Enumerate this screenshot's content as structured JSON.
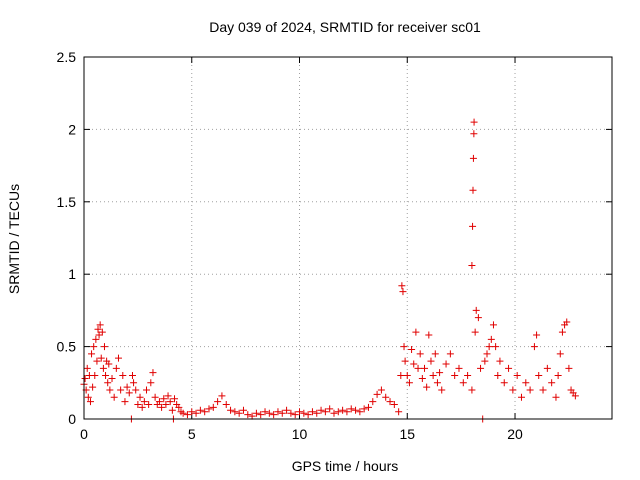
{
  "chart_data": {
    "type": "scatter",
    "title": "Day 039 of 2024, SRMTID for receiver sc01",
    "xlabel": "GPS time / hours",
    "ylabel": "SRMTID / TECUs",
    "xlim": [
      0,
      24.5
    ],
    "ylim": [
      0,
      2.5
    ],
    "xticks": [
      0,
      5,
      10,
      15,
      20
    ],
    "xtick_labels": [
      "0",
      "5",
      "10",
      "15",
      "20"
    ],
    "yticks": [
      0,
      0.5,
      1,
      1.5,
      2,
      2.5
    ],
    "ytick_labels": [
      "0",
      "0.5",
      "1",
      "1.5",
      "2",
      "2.5"
    ],
    "grid": true,
    "marker": "+",
    "color": "#e00000",
    "series": [
      {
        "name": "SRMTID",
        "points": [
          [
            0.0,
            0.24
          ],
          [
            0.05,
            0.28
          ],
          [
            0.1,
            0.2
          ],
          [
            0.15,
            0.35
          ],
          [
            0.2,
            0.15
          ],
          [
            0.25,
            0.3
          ],
          [
            0.3,
            0.12
          ],
          [
            0.35,
            0.45
          ],
          [
            0.4,
            0.22
          ],
          [
            0.45,
            0.5
          ],
          [
            0.5,
            0.3
          ],
          [
            0.55,
            0.55
          ],
          [
            0.6,
            0.4
          ],
          [
            0.65,
            0.62
          ],
          [
            0.7,
            0.58
          ],
          [
            0.75,
            0.65
          ],
          [
            0.8,
            0.42
          ],
          [
            0.85,
            0.6
          ],
          [
            0.9,
            0.35
          ],
          [
            0.95,
            0.5
          ],
          [
            1.0,
            0.3
          ],
          [
            1.05,
            0.4
          ],
          [
            1.1,
            0.25
          ],
          [
            1.15,
            0.38
          ],
          [
            1.2,
            0.2
          ],
          [
            1.3,
            0.28
          ],
          [
            1.4,
            0.15
          ],
          [
            1.5,
            0.35
          ],
          [
            1.6,
            0.42
          ],
          [
            1.7,
            0.2
          ],
          [
            1.8,
            0.3
          ],
          [
            1.9,
            0.12
          ],
          [
            2.0,
            0.22
          ],
          [
            2.1,
            0.18
          ],
          [
            2.2,
            0.0
          ],
          [
            2.25,
            0.3
          ],
          [
            2.3,
            0.25
          ],
          [
            2.4,
            0.2
          ],
          [
            2.5,
            0.1
          ],
          [
            2.6,
            0.15
          ],
          [
            2.7,
            0.08
          ],
          [
            2.8,
            0.12
          ],
          [
            2.9,
            0.2
          ],
          [
            3.0,
            0.1
          ],
          [
            3.1,
            0.25
          ],
          [
            3.2,
            0.32
          ],
          [
            3.3,
            0.15
          ],
          [
            3.4,
            0.1
          ],
          [
            3.5,
            0.12
          ],
          [
            3.6,
            0.08
          ],
          [
            3.7,
            0.14
          ],
          [
            3.8,
            0.1
          ],
          [
            3.9,
            0.16
          ],
          [
            4.0,
            0.12
          ],
          [
            4.1,
            0.06
          ],
          [
            4.15,
            0.0
          ],
          [
            4.2,
            0.14
          ],
          [
            4.3,
            0.1
          ],
          [
            4.4,
            0.08
          ],
          [
            4.5,
            0.05
          ],
          [
            4.6,
            0.04
          ],
          [
            4.8,
            0.03
          ],
          [
            5.0,
            0.05
          ],
          [
            5.2,
            0.04
          ],
          [
            5.4,
            0.06
          ],
          [
            5.6,
            0.05
          ],
          [
            5.8,
            0.07
          ],
          [
            6.0,
            0.08
          ],
          [
            6.2,
            0.12
          ],
          [
            6.4,
            0.16
          ],
          [
            6.6,
            0.1
          ],
          [
            6.8,
            0.06
          ],
          [
            7.0,
            0.05
          ],
          [
            7.2,
            0.04
          ],
          [
            7.4,
            0.06
          ],
          [
            7.6,
            0.03
          ],
          [
            7.8,
            0.02
          ],
          [
            8.0,
            0.04
          ],
          [
            8.2,
            0.03
          ],
          [
            8.4,
            0.05
          ],
          [
            8.6,
            0.04
          ],
          [
            8.8,
            0.03
          ],
          [
            9.0,
            0.05
          ],
          [
            9.2,
            0.04
          ],
          [
            9.4,
            0.06
          ],
          [
            9.6,
            0.04
          ],
          [
            9.8,
            0.03
          ],
          [
            10.0,
            0.05
          ],
          [
            10.2,
            0.04
          ],
          [
            10.4,
            0.03
          ],
          [
            10.6,
            0.05
          ],
          [
            10.8,
            0.04
          ],
          [
            11.0,
            0.06
          ],
          [
            11.2,
            0.05
          ],
          [
            11.4,
            0.07
          ],
          [
            11.6,
            0.04
          ],
          [
            11.8,
            0.05
          ],
          [
            12.0,
            0.06
          ],
          [
            12.2,
            0.05
          ],
          [
            12.4,
            0.07
          ],
          [
            12.6,
            0.06
          ],
          [
            12.8,
            0.05
          ],
          [
            13.0,
            0.07
          ],
          [
            13.2,
            0.08
          ],
          [
            13.4,
            0.12
          ],
          [
            13.6,
            0.17
          ],
          [
            13.8,
            0.2
          ],
          [
            14.0,
            0.15
          ],
          [
            14.2,
            0.12
          ],
          [
            14.4,
            0.1
          ],
          [
            14.6,
            0.05
          ],
          [
            14.7,
            0.3
          ],
          [
            14.75,
            0.92
          ],
          [
            14.8,
            0.88
          ],
          [
            14.85,
            0.5
          ],
          [
            14.9,
            0.4
          ],
          [
            15.0,
            0.3
          ],
          [
            15.1,
            0.25
          ],
          [
            15.2,
            0.48
          ],
          [
            15.3,
            0.38
          ],
          [
            15.4,
            0.6
          ],
          [
            15.5,
            0.35
          ],
          [
            15.6,
            0.45
          ],
          [
            15.7,
            0.28
          ],
          [
            15.8,
            0.35
          ],
          [
            15.9,
            0.22
          ],
          [
            16.0,
            0.58
          ],
          [
            16.1,
            0.4
          ],
          [
            16.2,
            0.3
          ],
          [
            16.3,
            0.45
          ],
          [
            16.4,
            0.25
          ],
          [
            16.5,
            0.32
          ],
          [
            16.6,
            0.2
          ],
          [
            16.8,
            0.38
          ],
          [
            17.0,
            0.45
          ],
          [
            17.2,
            0.3
          ],
          [
            17.4,
            0.35
          ],
          [
            17.6,
            0.25
          ],
          [
            17.8,
            0.3
          ],
          [
            18.0,
            0.2
          ],
          [
            18.0,
            1.06
          ],
          [
            18.03,
            1.33
          ],
          [
            18.05,
            1.58
          ],
          [
            18.07,
            1.8
          ],
          [
            18.09,
            1.97
          ],
          [
            18.1,
            2.05
          ],
          [
            18.15,
            0.6
          ],
          [
            18.2,
            0.75
          ],
          [
            18.3,
            0.7
          ],
          [
            18.4,
            0.35
          ],
          [
            18.5,
            0.0
          ],
          [
            18.6,
            0.4
          ],
          [
            18.7,
            0.45
          ],
          [
            18.8,
            0.5
          ],
          [
            18.9,
            0.55
          ],
          [
            19.0,
            0.65
          ],
          [
            19.1,
            0.5
          ],
          [
            19.2,
            0.3
          ],
          [
            19.3,
            0.4
          ],
          [
            19.5,
            0.25
          ],
          [
            19.7,
            0.35
          ],
          [
            19.9,
            0.2
          ],
          [
            20.1,
            0.3
          ],
          [
            20.3,
            0.15
          ],
          [
            20.5,
            0.25
          ],
          [
            20.7,
            0.2
          ],
          [
            20.9,
            0.5
          ],
          [
            21.0,
            0.58
          ],
          [
            21.1,
            0.3
          ],
          [
            21.3,
            0.2
          ],
          [
            21.5,
            0.35
          ],
          [
            21.7,
            0.25
          ],
          [
            21.9,
            0.15
          ],
          [
            22.0,
            0.3
          ],
          [
            22.1,
            0.45
          ],
          [
            22.2,
            0.6
          ],
          [
            22.3,
            0.65
          ],
          [
            22.4,
            0.67
          ],
          [
            22.5,
            0.35
          ],
          [
            22.6,
            0.2
          ],
          [
            22.7,
            0.18
          ],
          [
            22.8,
            0.16
          ]
        ]
      }
    ]
  }
}
